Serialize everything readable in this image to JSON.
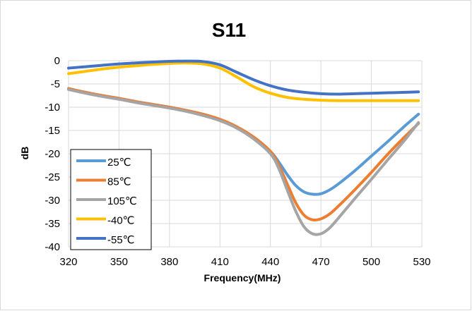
{
  "chart_data": {
    "type": "line",
    "title": "S11",
    "xlabel": "Frequency(MHz)",
    "ylabel": "dB",
    "xlim": [
      320,
      530
    ],
    "ylim": [
      -40,
      0
    ],
    "x_ticks": [
      "320",
      "350",
      "380",
      "410",
      "440",
      "470",
      "500",
      "530"
    ],
    "y_ticks": [
      "0",
      "-5",
      "-10",
      "-15",
      "-20",
      "-25",
      "-30",
      "-35",
      "-40"
    ],
    "grid": true,
    "legend_position": "bottom-left",
    "series": [
      {
        "name": "25℃",
        "color": "#5B9BD5",
        "x": [
          320,
          330,
          340,
          350,
          360,
          370,
          380,
          390,
          400,
          410,
          420,
          430,
          440,
          445,
          450,
          455,
          460,
          465,
          470,
          475,
          480,
          490,
          500,
          510,
          520,
          528
        ],
        "y": [
          -6.0,
          -6.8,
          -7.5,
          -8.1,
          -8.8,
          -9.4,
          -10.0,
          -10.7,
          -11.6,
          -12.8,
          -14.3,
          -16.5,
          -19.5,
          -21.8,
          -24.5,
          -26.8,
          -28.2,
          -28.7,
          -28.6,
          -27.8,
          -26.6,
          -23.7,
          -20.5,
          -17.3,
          -14.0,
          -11.5
        ]
      },
      {
        "name": "85℃",
        "color": "#ED7D31",
        "x": [
          320,
          330,
          340,
          350,
          360,
          370,
          380,
          390,
          400,
          410,
          420,
          430,
          440,
          445,
          450,
          455,
          460,
          465,
          470,
          475,
          480,
          490,
          500,
          510,
          520,
          528
        ],
        "y": [
          -6.0,
          -6.8,
          -7.5,
          -8.1,
          -8.8,
          -9.4,
          -10.0,
          -10.7,
          -11.5,
          -12.6,
          -14.2,
          -16.4,
          -19.5,
          -22.5,
          -26.5,
          -30.5,
          -33.2,
          -34.2,
          -34.0,
          -33.0,
          -31.4,
          -27.8,
          -24.0,
          -20.0,
          -16.3,
          -13.5
        ]
      },
      {
        "name": "105℃",
        "color": "#A5A5A5",
        "x": [
          320,
          330,
          340,
          350,
          360,
          370,
          380,
          390,
          400,
          410,
          420,
          430,
          440,
          445,
          450,
          455,
          460,
          465,
          470,
          475,
          480,
          490,
          500,
          510,
          520,
          528
        ],
        "y": [
          -6.2,
          -7.0,
          -7.7,
          -8.3,
          -9.0,
          -9.6,
          -10.2,
          -10.9,
          -11.8,
          -12.9,
          -14.5,
          -16.8,
          -20.0,
          -23.2,
          -27.8,
          -32.3,
          -35.7,
          -37.2,
          -37.2,
          -36.0,
          -34.0,
          -29.7,
          -25.5,
          -21.2,
          -17.0,
          -13.3
        ]
      },
      {
        "name": "-40℃",
        "color": "#FFC000",
        "x": [
          320,
          330,
          340,
          350,
          360,
          370,
          380,
          390,
          400,
          410,
          420,
          430,
          440,
          450,
          460,
          470,
          480,
          490,
          500,
          510,
          520,
          528
        ],
        "y": [
          -2.8,
          -2.3,
          -1.8,
          -1.4,
          -1.1,
          -0.8,
          -0.6,
          -0.5,
          -0.7,
          -1.6,
          -3.5,
          -5.6,
          -7.0,
          -7.9,
          -8.3,
          -8.5,
          -8.6,
          -8.6,
          -8.6,
          -8.6,
          -8.6,
          -8.6
        ]
      },
      {
        "name": "-55℃",
        "color": "#4472C4",
        "x": [
          320,
          330,
          340,
          350,
          360,
          370,
          380,
          390,
          400,
          410,
          420,
          430,
          440,
          450,
          460,
          470,
          480,
          490,
          500,
          510,
          520,
          528
        ],
        "y": [
          -1.6,
          -1.3,
          -1.0,
          -0.7,
          -0.5,
          -0.3,
          -0.15,
          -0.1,
          -0.2,
          -0.9,
          -2.5,
          -4.1,
          -5.4,
          -6.3,
          -6.8,
          -7.1,
          -7.2,
          -7.1,
          -7.0,
          -6.9,
          -6.8,
          -6.7
        ]
      }
    ]
  }
}
